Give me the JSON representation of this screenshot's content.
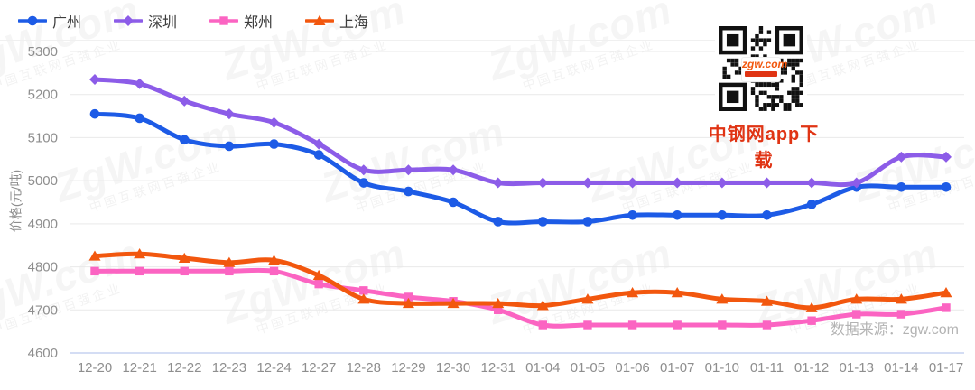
{
  "chart_data": {
    "type": "line",
    "title": "",
    "ylabel": "价格(元/吨)",
    "xlabel": "",
    "ylim": [
      4600,
      5300
    ],
    "ytick_step": 100,
    "grid": true,
    "legend_position": "top-left",
    "categories": [
      "12-20",
      "12-21",
      "12-22",
      "12-23",
      "12-24",
      "12-27",
      "12-28",
      "12-29",
      "12-30",
      "12-31",
      "01-04",
      "01-05",
      "01-06",
      "01-07",
      "01-10",
      "01-11",
      "01-12",
      "01-13",
      "01-14",
      "01-17"
    ],
    "series": [
      {
        "name": "广州",
        "color": "#1d5be6",
        "marker": "circle",
        "values": [
          5155,
          5145,
          5095,
          5080,
          5085,
          5060,
          4995,
          4975,
          4950,
          4905,
          4905,
          4905,
          4920,
          4920,
          4920,
          4920,
          4945,
          4985,
          4985,
          4985
        ]
      },
      {
        "name": "深圳",
        "color": "#8c5ce8",
        "marker": "diamond",
        "values": [
          5235,
          5225,
          5185,
          5155,
          5135,
          5085,
          5025,
          5025,
          5025,
          4995,
          4995,
          4995,
          4995,
          4995,
          4995,
          4995,
          4995,
          4995,
          5055,
          5055
        ]
      },
      {
        "name": "郑州",
        "color": "#fb64c2",
        "marker": "square",
        "values": [
          4790,
          4790,
          4790,
          4790,
          4790,
          4760,
          4745,
          4730,
          4720,
          4700,
          4665,
          4665,
          4665,
          4665,
          4665,
          4665,
          4675,
          4690,
          4690,
          4705
        ]
      },
      {
        "name": "上海",
        "color": "#f2570e",
        "marker": "triangle",
        "values": [
          4825,
          4830,
          4820,
          4810,
          4815,
          4780,
          4725,
          4715,
          4715,
          4715,
          4710,
          4725,
          4740,
          4740,
          4725,
          4720,
          4705,
          4725,
          4725,
          4740
        ]
      }
    ]
  },
  "overlay": {
    "qr_caption": "中钢网app下载",
    "qr_logo_main": "zgw.com",
    "source_text": "数据来源：zgw.com"
  },
  "watermark": {
    "line1": "ZgW.com",
    "line2": "中国互联网百强企业"
  },
  "colors": {
    "grid_line": "#e9e9e9",
    "axis_line": "#c5d2f0",
    "tick_text": "#8e8e8e",
    "legend_text": "#3c3c3c",
    "caption_red": "#e03414",
    "source_gray": "#b3b3b3"
  }
}
